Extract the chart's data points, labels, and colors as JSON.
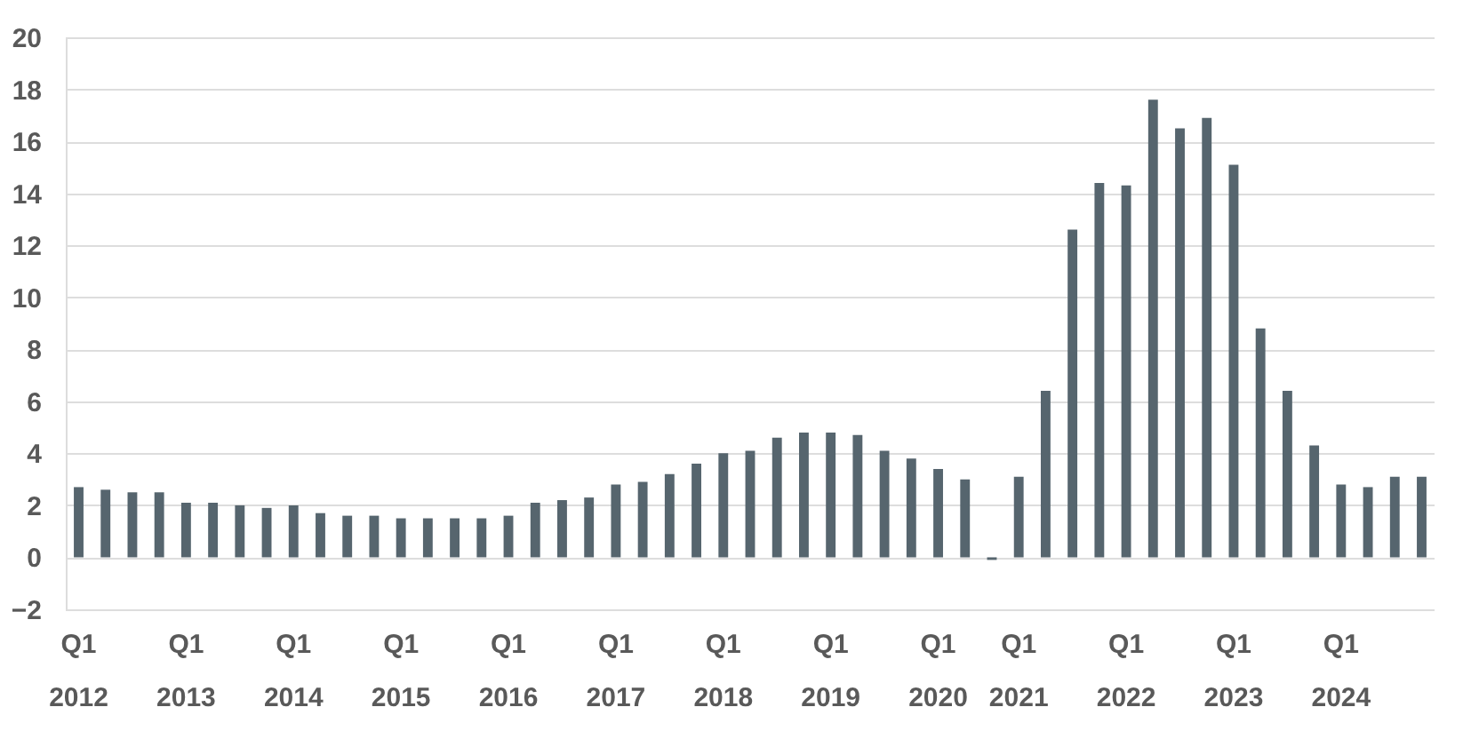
{
  "chart_data": {
    "type": "bar",
    "categories": [
      "Q1 2012",
      null,
      null,
      null,
      "Q1 2013",
      null,
      null,
      null,
      "Q1 2014",
      null,
      null,
      null,
      "Q1 2015",
      null,
      null,
      null,
      "Q1 2016",
      null,
      null,
      null,
      "Q1 2017",
      null,
      null,
      null,
      "Q1 2018",
      null,
      null,
      null,
      "Q1 2019",
      null,
      null,
      null,
      "Q1 2020",
      null,
      null,
      null,
      "Q1 2021",
      null,
      null,
      null,
      "Q1 2022",
      null,
      null,
      null,
      "Q1 2023",
      null,
      null,
      null,
      "Q1 2024",
      null,
      null,
      null
    ],
    "values": [
      2.7,
      2.6,
      2.5,
      2.5,
      2.1,
      2.1,
      2.0,
      1.9,
      2.0,
      1.7,
      1.6,
      1.6,
      1.5,
      1.5,
      1.5,
      1.5,
      1.6,
      2.1,
      2.2,
      2.3,
      2.8,
      2.9,
      3.2,
      3.6,
      4.0,
      4.1,
      4.6,
      4.8,
      4.8,
      4.7,
      4.1,
      3.8,
      3.4,
      3.0,
      null,
      -0.1,
      3.1,
      6.4,
      12.6,
      14.4,
      14.3,
      17.6,
      16.5,
      16.9,
      15.1,
      8.8,
      6.4,
      4.3,
      2.8,
      2.7,
      3.1,
      3.1
    ],
    "color": "#56656e",
    "ylim": [
      -2,
      20
    ],
    "yticks": [
      -2,
      0,
      2,
      4,
      6,
      8,
      10,
      12,
      14,
      16,
      18,
      20
    ],
    "grid": "y"
  }
}
